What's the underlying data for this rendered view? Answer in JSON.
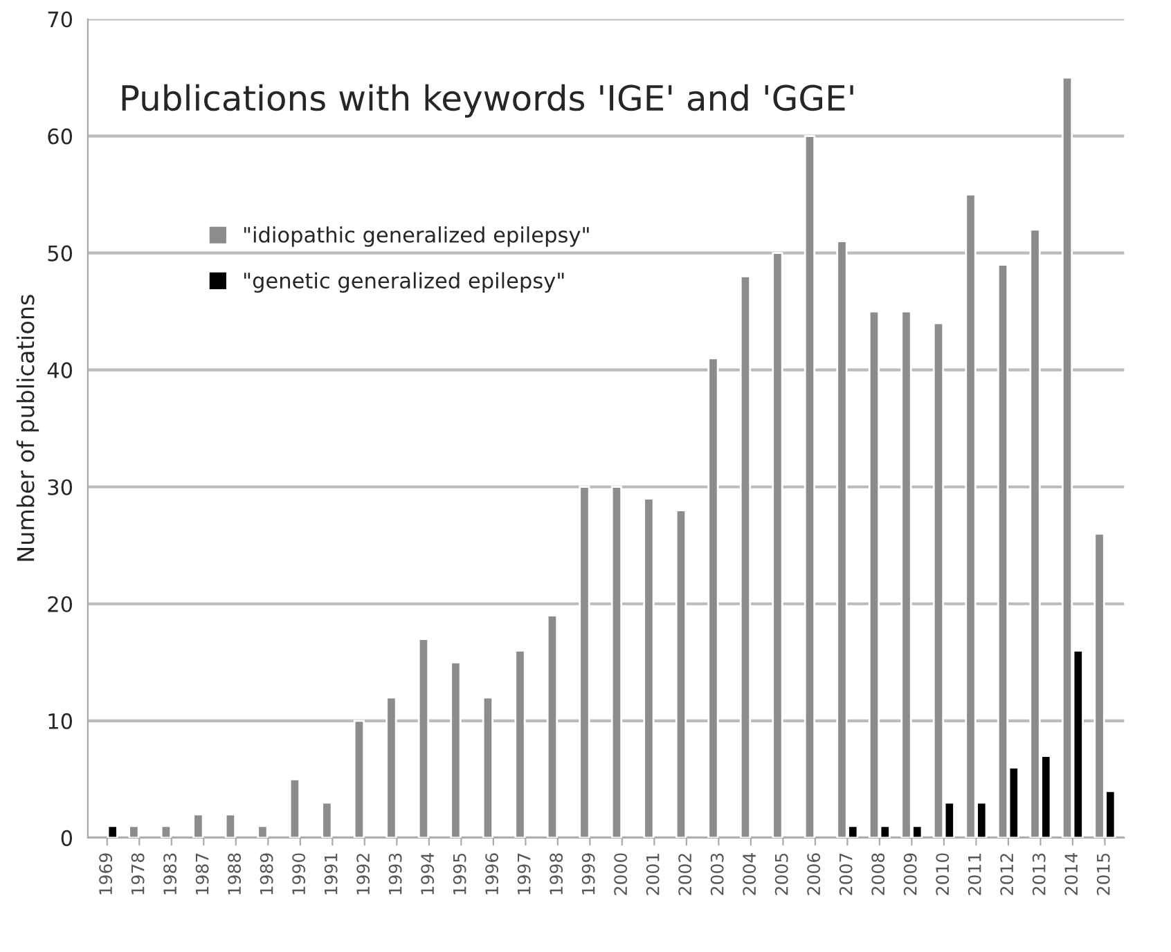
{
  "chart_data": {
    "type": "bar",
    "title": "Publications with keywords 'IGE' and 'GGE'",
    "ylabel": "Number of publications",
    "categories": [
      "1969",
      "1978",
      "1983",
      "1987",
      "1988",
      "1989",
      "1990",
      "1991",
      "1992",
      "1993",
      "1994",
      "1995",
      "1996",
      "1997",
      "1998",
      "1999",
      "2000",
      "2001",
      "2002",
      "2003",
      "2004",
      "2005",
      "2006",
      "2007",
      "2008",
      "2009",
      "2010",
      "2011",
      "2012",
      "2013",
      "2014",
      "2015"
    ],
    "series": [
      {
        "name": "\"idiopathic generalized epilepsy\"",
        "color": "#8c8c8c",
        "values": [
          null,
          1,
          1,
          2,
          2,
          1,
          5,
          3,
          10,
          12,
          17,
          15,
          12,
          16,
          19,
          30,
          30,
          29,
          28,
          41,
          48,
          50,
          60,
          51,
          45,
          45,
          44,
          55,
          49,
          52,
          65,
          26
        ]
      },
      {
        "name": "\"genetic generalized epilepsy\"",
        "color": "#000000",
        "values": [
          1,
          null,
          null,
          null,
          null,
          null,
          null,
          null,
          null,
          null,
          null,
          null,
          null,
          null,
          null,
          null,
          null,
          null,
          null,
          null,
          null,
          null,
          null,
          1,
          1,
          1,
          3,
          3,
          6,
          7,
          16,
          4
        ]
      }
    ],
    "ylim": [
      0,
      70
    ],
    "yticks": [
      0,
      10,
      20,
      30,
      40,
      50,
      60,
      70
    ],
    "grid": "y",
    "legend": "top left"
  }
}
